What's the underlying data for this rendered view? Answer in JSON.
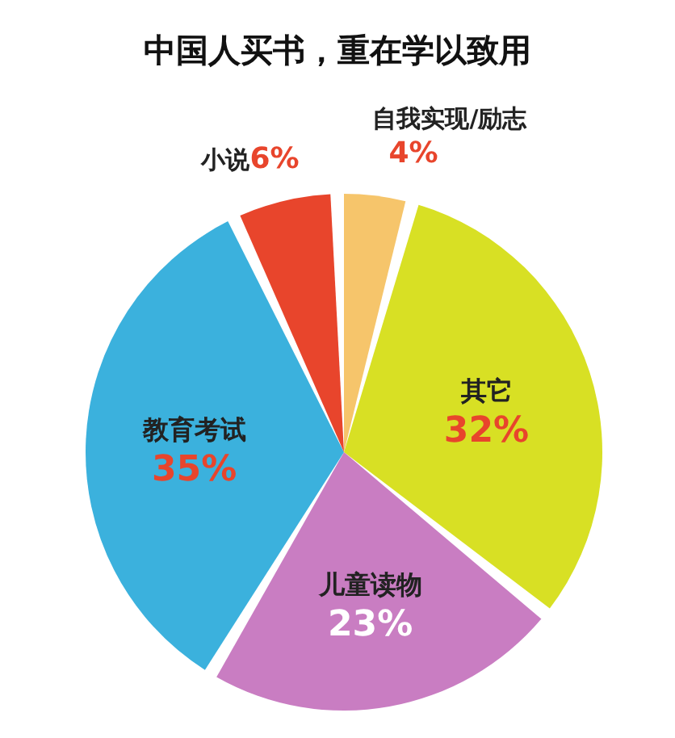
{
  "chart_data": {
    "type": "pie",
    "title": "中国人买书，重在学以致用",
    "categories": [
      "自我实现/励志",
      "其它",
      "儿童读物",
      "教育考试",
      "小说"
    ],
    "values": [
      4,
      32,
      23,
      35,
      6
    ],
    "value_labels": [
      "4%",
      "32%",
      "23%",
      "35%",
      "6%"
    ],
    "colors": [
      "#f6c56b",
      "#d8e024",
      "#c97dc2",
      "#3bb1dd",
      "#e8452c"
    ],
    "legend": false
  }
}
